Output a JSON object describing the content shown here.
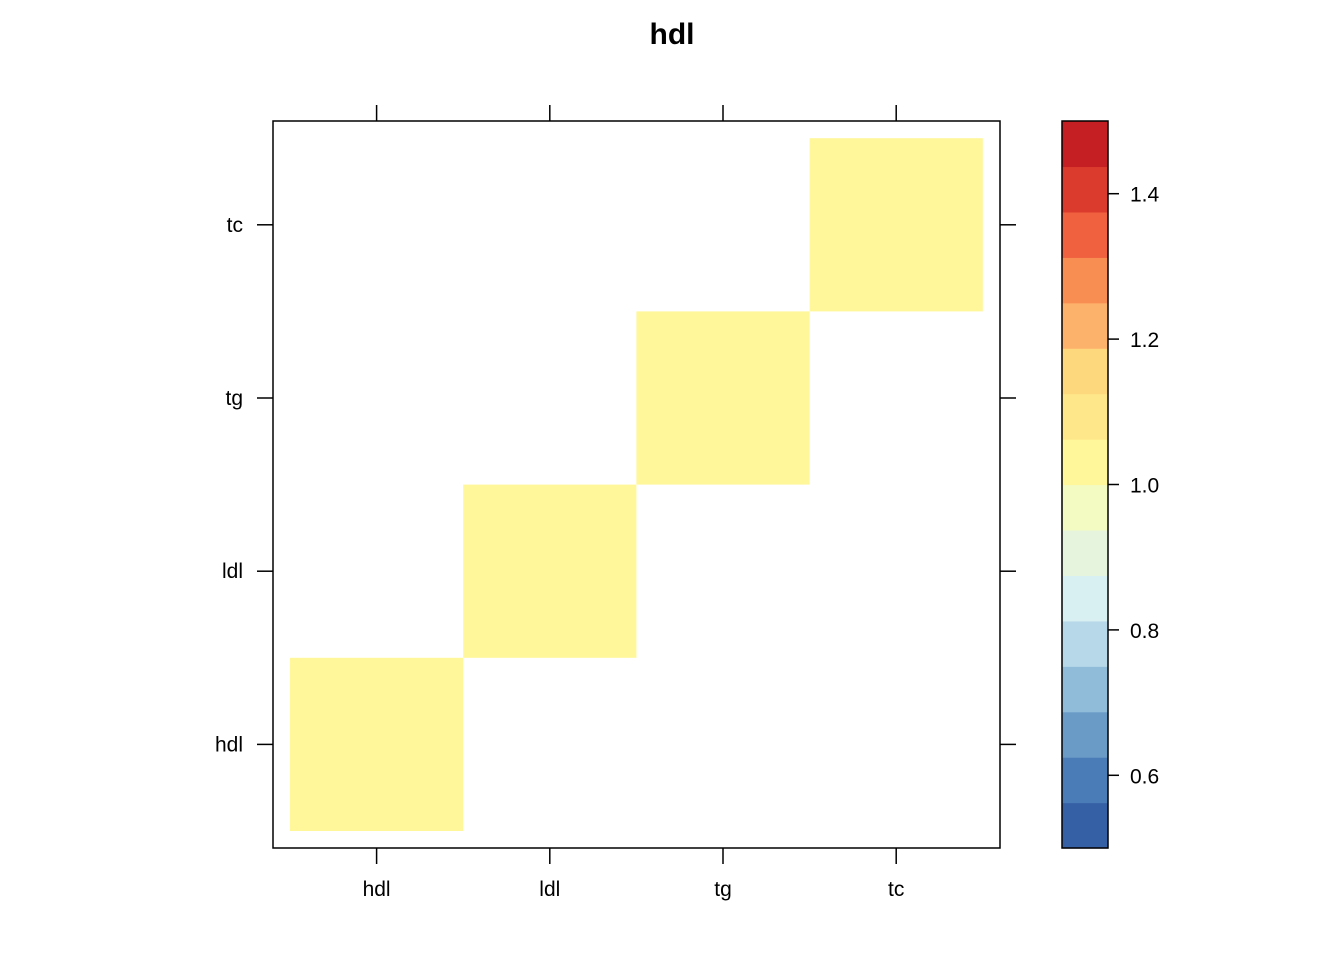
{
  "chart_data": {
    "type": "heatmap",
    "title": "hdl",
    "xlabel": "",
    "ylabel": "",
    "x_categories": [
      "hdl",
      "ldl",
      "tg",
      "tc"
    ],
    "y_categories": [
      "hdl",
      "ldl",
      "tg",
      "tc"
    ],
    "cells": [
      {
        "x": "hdl",
        "y": "hdl",
        "value": 1.0
      },
      {
        "x": "ldl",
        "y": "ldl",
        "value": 1.0
      },
      {
        "x": "tg",
        "y": "tg",
        "value": 1.0
      },
      {
        "x": "tc",
        "y": "tc",
        "value": 1.0
      }
    ],
    "colorbar": {
      "min": 0.5,
      "max": 1.5,
      "ticks": [
        "0.6",
        "0.8",
        "1.0",
        "1.2",
        "1.4"
      ],
      "tick_values": [
        0.6,
        0.8,
        1.0,
        1.2,
        1.4
      ],
      "colors": [
        "#3660A5",
        "#4A7DB8",
        "#6A9AC6",
        "#91BCD9",
        "#B7D8E8",
        "#D9F0F3",
        "#E6F4DE",
        "#F3FBC2",
        "#FFF799",
        "#FEE78A",
        "#FED87D",
        "#FDB26C",
        "#F98E52",
        "#F06140",
        "#DB3B2C",
        "#C51F23"
      ]
    },
    "grid": false,
    "legend": "right colorbar"
  }
}
